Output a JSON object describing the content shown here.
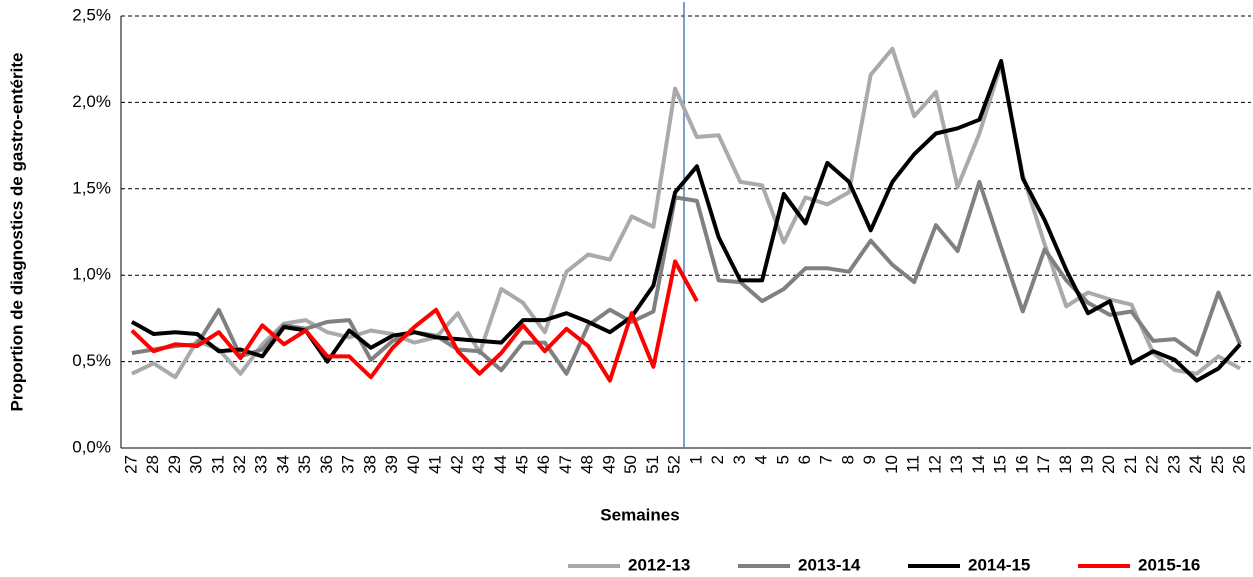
{
  "chart_data": {
    "type": "line",
    "x_label": "Semaines",
    "y_label": "Proportion de diagnostics de gastro-entérite",
    "categories": [
      "27",
      "28",
      "29",
      "30",
      "31",
      "32",
      "33",
      "34",
      "35",
      "36",
      "37",
      "38",
      "39",
      "40",
      "41",
      "42",
      "43",
      "44",
      "45",
      "46",
      "47",
      "48",
      "49",
      "50",
      "51",
      "52",
      "1",
      "2",
      "3",
      "4",
      "5",
      "6",
      "7",
      "8",
      "9",
      "10",
      "11",
      "12",
      "13",
      "14",
      "15",
      "16",
      "17",
      "18",
      "19",
      "20",
      "21",
      "22",
      "23",
      "24",
      "25",
      "26"
    ],
    "ylim": [
      0,
      2.5
    ],
    "yticks": [
      {
        "value": 0,
        "label": "0,0%"
      },
      {
        "value": 0.5,
        "label": "0,5%"
      },
      {
        "value": 1,
        "label": "1,0%"
      },
      {
        "value": 1.5,
        "label": "1,5%"
      },
      {
        "value": 2,
        "label": "2,0%"
      },
      {
        "value": 2.5,
        "label": "2,5%"
      }
    ],
    "grid": true,
    "legend": "bottom-right",
    "series": [
      {
        "name": "2012-13",
        "color": "#aaaaaa",
        "values": [
          0.43,
          0.49,
          0.41,
          0.62,
          0.57,
          0.43,
          0.6,
          0.72,
          0.74,
          0.67,
          0.64,
          0.68,
          0.66,
          0.61,
          0.64,
          0.78,
          0.55,
          0.92,
          0.84,
          0.67,
          1.02,
          1.12,
          1.09,
          1.34,
          1.28,
          2.08,
          1.8,
          1.81,
          1.54,
          1.52,
          1.19,
          1.45,
          1.41,
          1.48,
          2.16,
          2.31,
          1.92,
          2.06,
          1.51,
          1.82,
          2.22,
          1.58,
          1.18,
          0.82,
          0.9,
          0.86,
          0.83,
          0.55,
          0.45,
          0.43,
          0.53,
          0.46
        ]
      },
      {
        "name": "2013-14",
        "color": "#808080",
        "values": [
          0.55,
          0.57,
          0.59,
          0.6,
          0.8,
          0.53,
          0.57,
          0.71,
          0.69,
          0.73,
          0.74,
          0.51,
          0.62,
          0.67,
          0.65,
          0.57,
          0.56,
          0.45,
          0.61,
          0.61,
          0.43,
          0.71,
          0.8,
          0.73,
          0.79,
          1.45,
          1.43,
          0.97,
          0.96,
          0.85,
          0.92,
          1.04,
          1.04,
          1.02,
          1.2,
          1.06,
          0.96,
          1.29,
          1.14,
          1.54,
          1.16,
          0.79,
          1.15,
          0.97,
          0.84,
          0.77,
          0.79,
          0.62,
          0.63,
          0.54,
          0.9,
          0.6
        ]
      },
      {
        "name": "2014-15",
        "color": "#000000",
        "values": [
          0.73,
          0.66,
          0.67,
          0.66,
          0.56,
          0.57,
          0.53,
          0.7,
          0.68,
          0.5,
          0.68,
          0.58,
          0.65,
          0.67,
          0.64,
          0.63,
          0.62,
          0.61,
          0.74,
          0.74,
          0.78,
          0.73,
          0.67,
          0.76,
          0.94,
          1.48,
          1.63,
          1.22,
          0.97,
          0.97,
          1.47,
          1.3,
          1.65,
          1.54,
          1.26,
          1.54,
          1.7,
          1.82,
          1.85,
          1.9,
          2.24,
          1.56,
          1.32,
          1.03,
          0.78,
          0.85,
          0.49,
          0.56,
          0.51,
          0.39,
          0.46,
          0.6
        ]
      },
      {
        "name": "2015-16",
        "color": "#ff0000",
        "values": [
          0.68,
          0.56,
          0.6,
          0.59,
          0.67,
          0.52,
          0.71,
          0.6,
          0.68,
          0.53,
          0.53,
          0.41,
          0.58,
          0.7,
          0.8,
          0.56,
          0.43,
          0.55,
          0.71,
          0.56,
          0.69,
          0.59,
          0.39,
          0.78,
          0.47,
          1.08,
          0.85,
          null,
          null,
          null,
          null,
          null,
          null,
          null,
          null,
          null,
          null,
          null,
          null,
          null,
          null,
          null,
          null,
          null,
          null,
          null,
          null,
          null,
          null,
          null,
          null,
          null
        ]
      }
    ]
  }
}
